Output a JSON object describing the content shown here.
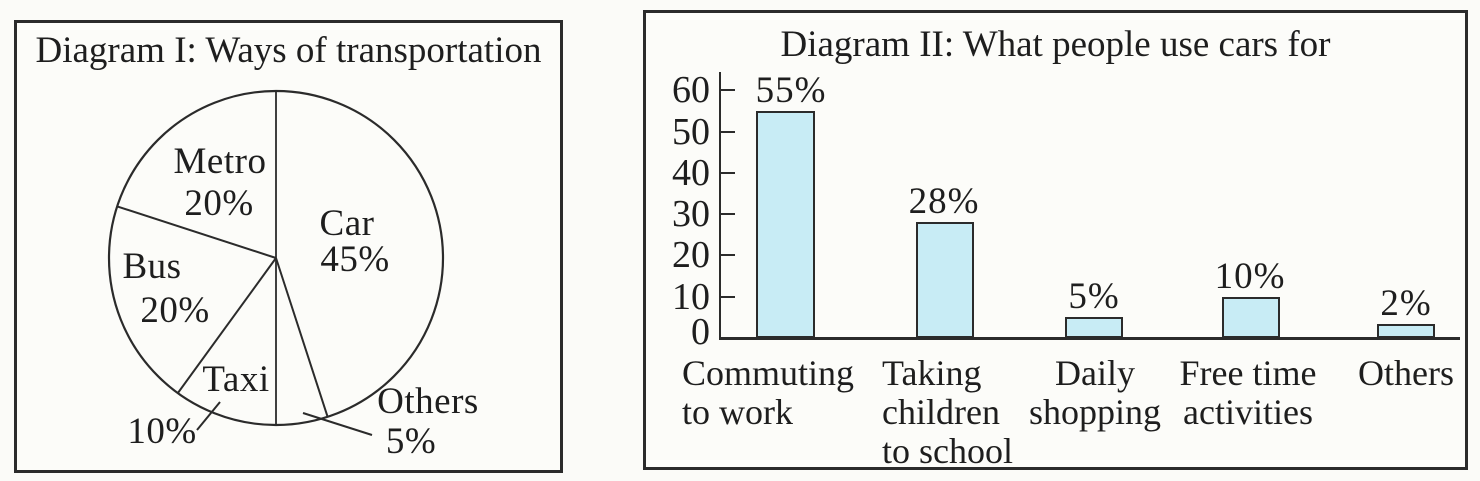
{
  "figure": {
    "background": "#fbfbf8",
    "ink_color": "#2b2b2b"
  },
  "chart_data": [
    {
      "type": "pie",
      "title": "Diagram I: Ways of transportation",
      "start_angle_deg": 0,
      "direction": "clockwise",
      "filled": false,
      "slices": [
        {
          "label": "Car",
          "value": 45,
          "value_label": "45%"
        },
        {
          "label": "Others",
          "value": 5,
          "value_label": "5%",
          "labeled_outside": true
        },
        {
          "label": "Taxi",
          "value": 10,
          "value_label": "10%",
          "percent_labeled_outside": true
        },
        {
          "label": "Bus",
          "value": 20,
          "value_label": "20%"
        },
        {
          "label": "Metro",
          "value": 20,
          "value_label": "20%"
        }
      ]
    },
    {
      "type": "bar",
      "title": "Diagram II: What people use cars for",
      "categories": [
        "Commuting to work",
        "Taking children to school",
        "Daily shopping",
        "Free time activities",
        "Others"
      ],
      "category_lines": [
        "Commuting\nto work",
        "Taking\nchildren\nto school",
        "Daily\nshopping",
        "Free time\nactivities",
        "Others"
      ],
      "values": [
        55,
        28,
        5,
        10,
        2
      ],
      "value_labels": [
        "55%",
        "28%",
        "5%",
        "10%",
        "2%"
      ],
      "y_ticks": [
        60,
        50,
        40,
        30,
        20,
        10,
        0
      ],
      "ylim": [
        0,
        60
      ],
      "grid": false,
      "legend": false,
      "bar_color": "#c8ecf5",
      "bar_border_color": "#2b2b2b"
    }
  ]
}
